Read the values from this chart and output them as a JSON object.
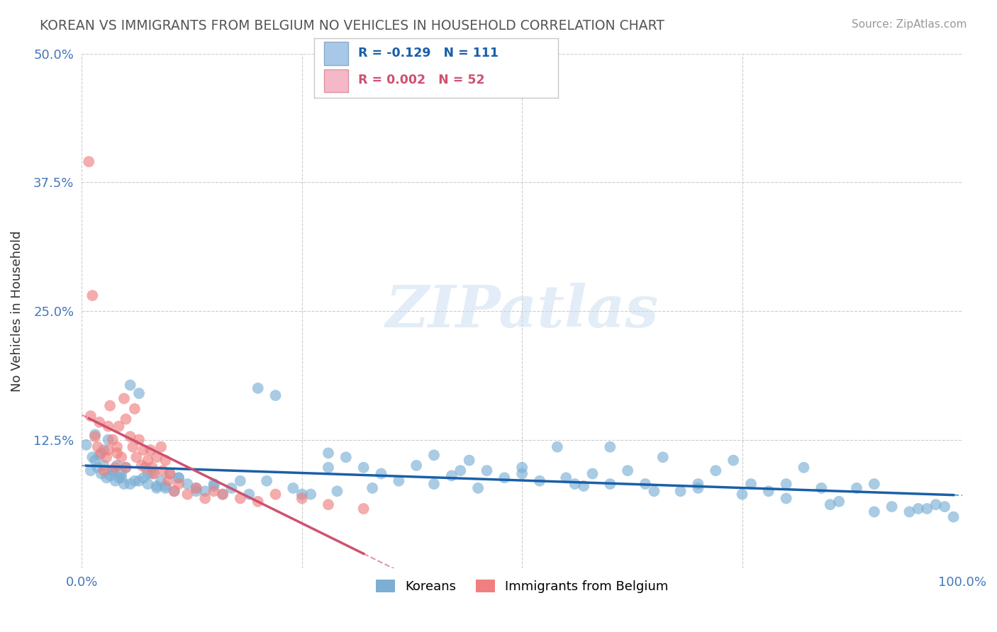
{
  "title": "KOREAN VS IMMIGRANTS FROM BELGIUM NO VEHICLES IN HOUSEHOLD CORRELATION CHART",
  "source": "Source: ZipAtlas.com",
  "ylabel": "No Vehicles in Household",
  "xlim": [
    0.0,
    1.0
  ],
  "ylim": [
    0.0,
    0.5
  ],
  "yticks": [
    0.0,
    0.125,
    0.25,
    0.375,
    0.5
  ],
  "ytick_labels": [
    "",
    "12.5%",
    "25.0%",
    "37.5%",
    "50.0%"
  ],
  "xticks": [
    0.0,
    0.25,
    0.5,
    0.75,
    1.0
  ],
  "xtick_labels": [
    "0.0%",
    "",
    "",
    "",
    "100.0%"
  ],
  "korean_color": "#7bafd4",
  "belgium_color": "#f08080",
  "korean_line_color": "#1a5fa8",
  "belgium_line_color": "#d05070",
  "watermark_text": "ZIPatlas",
  "background_color": "#ffffff",
  "grid_color": "#cccccc",
  "korean_x": [
    0.005,
    0.01,
    0.012,
    0.015,
    0.018,
    0.02,
    0.022,
    0.025,
    0.028,
    0.03,
    0.032,
    0.035,
    0.038,
    0.04,
    0.042,
    0.045,
    0.048,
    0.05,
    0.055,
    0.06,
    0.065,
    0.07,
    0.075,
    0.08,
    0.085,
    0.09,
    0.095,
    0.1,
    0.105,
    0.11,
    0.12,
    0.13,
    0.14,
    0.15,
    0.16,
    0.18,
    0.2,
    0.22,
    0.24,
    0.26,
    0.28,
    0.3,
    0.32,
    0.34,
    0.36,
    0.38,
    0.4,
    0.42,
    0.44,
    0.46,
    0.48,
    0.5,
    0.52,
    0.54,
    0.56,
    0.58,
    0.6,
    0.62,
    0.64,
    0.66,
    0.68,
    0.7,
    0.72,
    0.74,
    0.76,
    0.78,
    0.8,
    0.82,
    0.84,
    0.86,
    0.88,
    0.9,
    0.92,
    0.94,
    0.96,
    0.98,
    0.015,
    0.025,
    0.035,
    0.045,
    0.055,
    0.065,
    0.075,
    0.085,
    0.095,
    0.11,
    0.13,
    0.15,
    0.17,
    0.19,
    0.21,
    0.25,
    0.29,
    0.33,
    0.4,
    0.45,
    0.5,
    0.55,
    0.6,
    0.65,
    0.7,
    0.75,
    0.8,
    0.85,
    0.9,
    0.95,
    0.97,
    0.99,
    0.28,
    0.43,
    0.57
  ],
  "korean_y": [
    0.12,
    0.095,
    0.108,
    0.105,
    0.098,
    0.11,
    0.092,
    0.115,
    0.088,
    0.125,
    0.09,
    0.095,
    0.085,
    0.1,
    0.088,
    0.092,
    0.082,
    0.098,
    0.178,
    0.085,
    0.17,
    0.088,
    0.082,
    0.092,
    0.078,
    0.085,
    0.08,
    0.092,
    0.075,
    0.088,
    0.082,
    0.078,
    0.075,
    0.08,
    0.072,
    0.085,
    0.175,
    0.168,
    0.078,
    0.072,
    0.112,
    0.108,
    0.098,
    0.092,
    0.085,
    0.1,
    0.11,
    0.09,
    0.105,
    0.095,
    0.088,
    0.098,
    0.085,
    0.118,
    0.082,
    0.092,
    0.118,
    0.095,
    0.082,
    0.108,
    0.075,
    0.082,
    0.095,
    0.105,
    0.082,
    0.075,
    0.082,
    0.098,
    0.078,
    0.065,
    0.078,
    0.082,
    0.06,
    0.055,
    0.058,
    0.06,
    0.13,
    0.1,
    0.095,
    0.088,
    0.082,
    0.085,
    0.092,
    0.08,
    0.078,
    0.088,
    0.075,
    0.082,
    0.078,
    0.072,
    0.085,
    0.072,
    0.075,
    0.078,
    0.082,
    0.078,
    0.092,
    0.088,
    0.082,
    0.075,
    0.078,
    0.072,
    0.068,
    0.062,
    0.055,
    0.058,
    0.062,
    0.05,
    0.098,
    0.095,
    0.08
  ],
  "belgium_x": [
    0.008,
    0.01,
    0.012,
    0.015,
    0.018,
    0.02,
    0.022,
    0.025,
    0.028,
    0.03,
    0.03,
    0.032,
    0.035,
    0.038,
    0.04,
    0.04,
    0.042,
    0.045,
    0.048,
    0.05,
    0.05,
    0.055,
    0.058,
    0.06,
    0.062,
    0.065,
    0.068,
    0.07,
    0.072,
    0.075,
    0.078,
    0.08,
    0.082,
    0.085,
    0.09,
    0.092,
    0.095,
    0.098,
    0.1,
    0.105,
    0.11,
    0.12,
    0.13,
    0.14,
    0.15,
    0.16,
    0.18,
    0.2,
    0.22,
    0.25,
    0.28,
    0.32
  ],
  "belgium_y": [
    0.395,
    0.148,
    0.265,
    0.128,
    0.118,
    0.142,
    0.112,
    0.095,
    0.108,
    0.138,
    0.115,
    0.158,
    0.125,
    0.098,
    0.118,
    0.112,
    0.138,
    0.108,
    0.165,
    0.145,
    0.098,
    0.128,
    0.118,
    0.155,
    0.108,
    0.125,
    0.1,
    0.115,
    0.098,
    0.105,
    0.115,
    0.098,
    0.092,
    0.108,
    0.118,
    0.095,
    0.105,
    0.085,
    0.092,
    0.075,
    0.082,
    0.072,
    0.078,
    0.068,
    0.075,
    0.072,
    0.068,
    0.065,
    0.072,
    0.068,
    0.062,
    0.058
  ]
}
